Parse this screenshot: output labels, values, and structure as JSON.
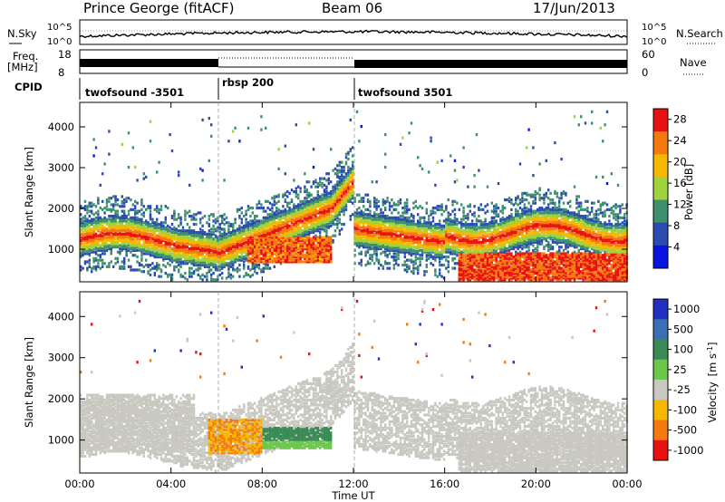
{
  "header": {
    "station": "Prince George (fitACF)",
    "beam": "Beam 06",
    "date": "17/Jun/2013"
  },
  "aux_panels": {
    "nsky_label": "N.Sky",
    "nsearch_label": "N.Search",
    "nsky_ticks": [
      "10^5",
      "10^0"
    ],
    "nsearch_ticks": [
      "10^5",
      "10^0"
    ],
    "freq_label_1": "Freq.",
    "freq_label_2": "[MHz]",
    "freq_ticks": [
      "18",
      "8"
    ],
    "nave_label": "Nave",
    "nave_ticks": [
      "60",
      "0"
    ],
    "cpid_label": "CPID",
    "cpid_segments": [
      {
        "name": "twofsound -3501",
        "start": 0,
        "end": 6
      },
      {
        "name": "rbsp 200",
        "start": 6,
        "end": 12
      },
      {
        "name": "twofsound 3501",
        "start": 12,
        "end": 24
      }
    ]
  },
  "chart_data": [
    {
      "type": "heatmap",
      "id": "power",
      "ylabel": "Slant Range [km]",
      "xlabel": "",
      "xlim": [
        0,
        24
      ],
      "ylim": [
        200,
        4600
      ],
      "yticks": [
        "1000",
        "2000",
        "3000",
        "4000"
      ],
      "ytick_values": [
        1000,
        2000,
        3000,
        4000
      ],
      "colorbar_label": "Power [dB]",
      "colorbar_ticks": [
        "4",
        "8",
        "12",
        "16",
        "20",
        "24",
        "28"
      ],
      "colorbar_colors": [
        "#0a14e0",
        "#2a4bb0",
        "#3e8f6e",
        "#9fd23c",
        "#f5b800",
        "#f47a10",
        "#e81010"
      ],
      "colorbar_range": [
        0,
        30
      ],
      "features": [
        {
          "band": "Main E/F echo band",
          "x_start": 0,
          "x_end": 4,
          "y_center": 1250,
          "value": 26
        },
        {
          "band": "Strong echo near 08:00-11:00",
          "x_start": 7,
          "x_end": 11,
          "y_center": 1000,
          "value": 22
        },
        {
          "band": "Near-range strong echo",
          "x_start": 17,
          "x_end": 24,
          "y_center": 500,
          "value": 28
        }
      ]
    },
    {
      "type": "heatmap",
      "id": "velocity",
      "ylabel": "Slant Range [km]",
      "xlabel": "Time UT",
      "xlim": [
        0,
        24
      ],
      "ylim": [
        200,
        4600
      ],
      "xticks": [
        "00:00",
        "04:00",
        "08:00",
        "12:00",
        "16:00",
        "20:00",
        "00:00"
      ],
      "xtick_values": [
        0,
        4,
        8,
        12,
        16,
        20,
        24
      ],
      "yticks": [
        "1000",
        "2000",
        "3000",
        "4000"
      ],
      "ytick_values": [
        1000,
        2000,
        3000,
        4000
      ],
      "colorbar_label_main": "Velocity",
      "colorbar_label_unit": "[m s",
      "colorbar_label_exp": "-1",
      "colorbar_label_close": "]",
      "colorbar_ticks": [
        "1000",
        "500",
        "100",
        "25",
        "-25",
        "-100",
        "-500",
        "-1000"
      ],
      "colorbar_colors": [
        "#2030c0",
        "#3b6fb4",
        "#3a8a55",
        "#6cc84a",
        "#c8c8c0",
        "#f5b800",
        "#f47a10",
        "#e81010"
      ],
      "features": [
        {
          "band": "Ground scatter (grey)",
          "x_start": 0,
          "x_end": 24,
          "y_center": 1500,
          "value": 0
        },
        {
          "band": "Positive velocity patch",
          "x_start": 8,
          "x_end": 11,
          "y_center": 1000,
          "value": 150
        },
        {
          "band": "Negative velocity patch",
          "x_start": 5.5,
          "x_end": 7.5,
          "y_center": 900,
          "value": -250
        }
      ]
    }
  ]
}
